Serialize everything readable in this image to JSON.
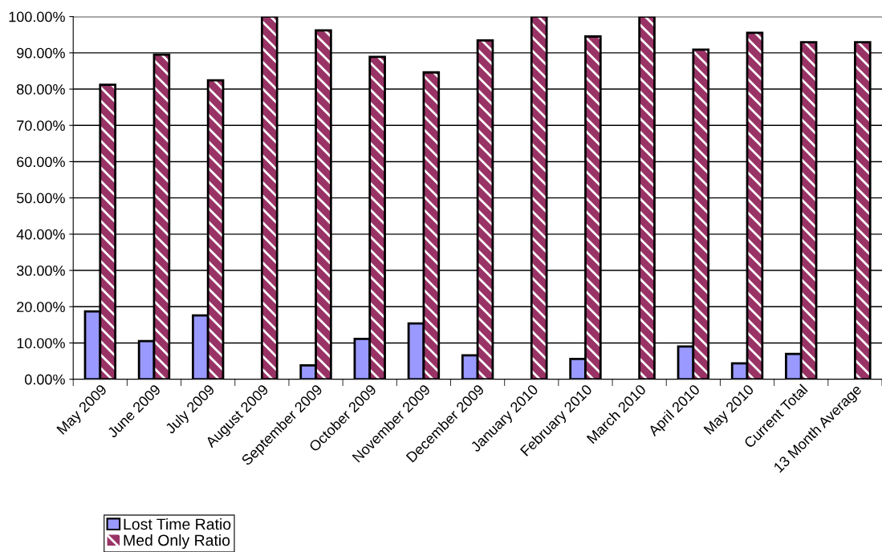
{
  "chart_data": {
    "type": "bar",
    "categories": [
      "May 2009",
      "June 2009",
      "July 2009",
      "August 2009",
      "September 2009",
      "October 2009",
      "November 2009",
      "December 2009",
      "January 2010",
      "February 2010",
      "March 2010",
      "April 2010",
      "May 2010",
      "Current Total",
      "13 Month Average"
    ],
    "series": [
      {
        "name": "Lost Time Ratio",
        "color": "#9999ff",
        "values": [
          18.7,
          10.5,
          17.6,
          null,
          3.8,
          11.1,
          15.4,
          6.6,
          null,
          5.6,
          null,
          9.0,
          4.4,
          7.0,
          null
        ]
      },
      {
        "name": "Med Only Ratio",
        "color": "#993366",
        "values": [
          81.2,
          89.5,
          82.4,
          100,
          96.2,
          88.9,
          84.6,
          93.4,
          100,
          94.5,
          100,
          90.9,
          95.5,
          92.9,
          92.9
        ]
      }
    ],
    "ylim": [
      0,
      100
    ],
    "yticks": [
      {
        "value": 0,
        "label": "0.00%"
      },
      {
        "value": 10,
        "label": "10.00%"
      },
      {
        "value": 20,
        "label": "20.00%"
      },
      {
        "value": 30,
        "label": "30.00%"
      },
      {
        "value": 40,
        "label": "40.00%"
      },
      {
        "value": 50,
        "label": "50.00%"
      },
      {
        "value": 60,
        "label": "60.00%"
      },
      {
        "value": 70,
        "label": "70.00%"
      },
      {
        "value": 80,
        "label": "80.00%"
      },
      {
        "value": 90,
        "label": "90.00%"
      },
      {
        "value": 100,
        "label": "100.00%"
      }
    ],
    "grid": "y",
    "legend": "bottom left"
  }
}
